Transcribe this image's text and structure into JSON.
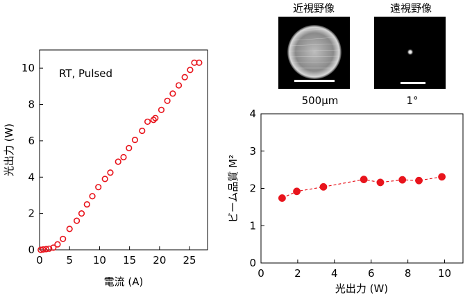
{
  "colors": {
    "marker": "#e8141c",
    "axis": "#000000",
    "image_bg": "#000000",
    "scale_bar": "#ffffff"
  },
  "panels": [
    {
      "title": "近視野像",
      "scale_label": "500μm",
      "image": "near-field-beam"
    },
    {
      "title": "遠視野像",
      "scale_label": "1°",
      "image": "far-field-spot"
    }
  ],
  "chart_data": [
    {
      "type": "scatter",
      "marker": "open-circle",
      "annotation": "RT, Pulsed",
      "xlabel": "電流 (A)",
      "ylabel": "光出力 (W)",
      "xlim": [
        0,
        28
      ],
      "ylim": [
        0,
        11
      ],
      "xticks": [
        0,
        5,
        10,
        15,
        20,
        25
      ],
      "yticks": [
        0,
        2,
        4,
        6,
        8,
        10
      ],
      "grid": false,
      "x": [
        0.2,
        0.6,
        1.1,
        1.6,
        2.3,
        3.0,
        3.9,
        5.0,
        6.2,
        7.0,
        7.9,
        8.8,
        9.8,
        10.9,
        11.8,
        13.1,
        14.0,
        14.9,
        15.9,
        17.1,
        18.0,
        19.0,
        19.3,
        20.3,
        21.3,
        22.2,
        23.2,
        24.2,
        25.1,
        25.8,
        26.6
      ],
      "y": [
        0.0,
        0.02,
        0.04,
        0.06,
        0.12,
        0.3,
        0.6,
        1.15,
        1.6,
        2.0,
        2.5,
        2.95,
        3.45,
        3.9,
        4.25,
        4.85,
        5.1,
        5.6,
        6.05,
        6.55,
        7.05,
        7.15,
        7.25,
        7.7,
        8.2,
        8.6,
        9.05,
        9.5,
        9.9,
        10.3,
        10.3
      ]
    },
    {
      "type": "line",
      "marker": "filled-circle",
      "line_style": "dashed",
      "xlabel": "光出力 (W)",
      "ylabel": "ビーム品質 M²",
      "xlim": [
        0,
        11
      ],
      "ylim": [
        0,
        4
      ],
      "xticks": [
        0,
        2,
        4,
        6,
        8,
        10
      ],
      "yticks": [
        0,
        1,
        2,
        3,
        4
      ],
      "grid": false,
      "x": [
        1.15,
        1.95,
        3.4,
        5.6,
        6.5,
        7.7,
        8.6,
        9.85
      ],
      "y": [
        1.74,
        1.92,
        2.04,
        2.24,
        2.16,
        2.23,
        2.21,
        2.31
      ]
    }
  ]
}
